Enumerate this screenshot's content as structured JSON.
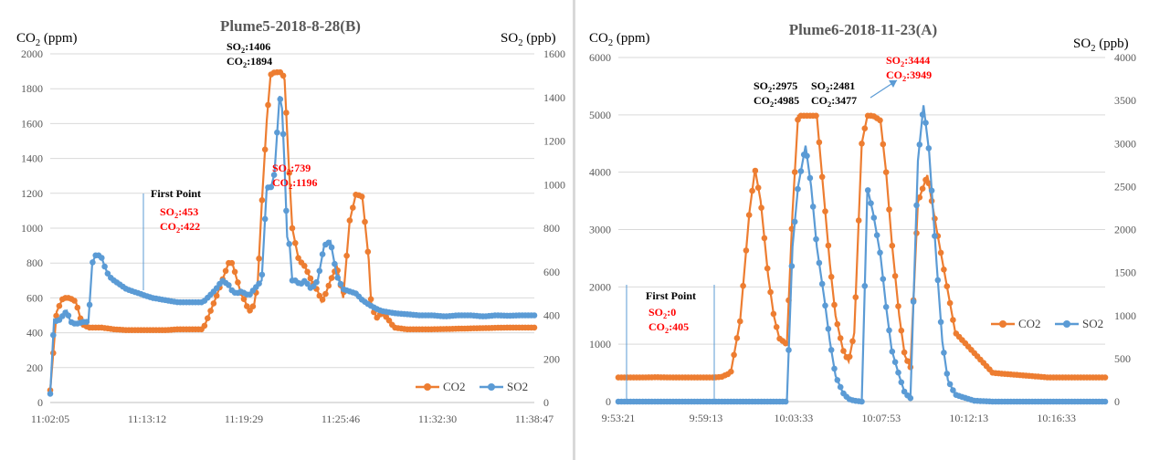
{
  "colors": {
    "co2": "#ED7D31",
    "so2": "#5B9BD5",
    "grid": "#d9d9d9",
    "red": "#FF0000",
    "black": "#000000"
  },
  "chart_data": [
    {
      "type": "line",
      "title": "Plume5-2018-8-28(B)",
      "ylabel": "CO2 (ppm)",
      "y2label": "SO2 (ppb)",
      "x_ticks": [
        "11:02:05",
        "11:13:12",
        "11:19:29",
        "11:25:46",
        "11:32:30",
        "11:38:47"
      ],
      "ylim": [
        0,
        2000
      ],
      "y_ticks": [
        0,
        200,
        400,
        600,
        800,
        1000,
        1200,
        1400,
        1600,
        1800,
        2000
      ],
      "y2lim": [
        0,
        1600
      ],
      "y2_ticks": [
        0,
        200,
        400,
        600,
        800,
        1000,
        1200,
        1400,
        1600
      ],
      "legend": [
        "CO2",
        "SO2"
      ],
      "legend_position": "bottom-right",
      "grid": true,
      "series": [
        {
          "name": "CO2",
          "axis": "left",
          "t": [
            0,
            0.5,
            1,
            1.5,
            2,
            2.5,
            3,
            3.5,
            4,
            5,
            6,
            7,
            8,
            9,
            10,
            11,
            12,
            13,
            14,
            14.3,
            14.6,
            15,
            15.3,
            15.6,
            16,
            16.3,
            16.6,
            17,
            17.3,
            17.6,
            18,
            18.2,
            18.4,
            18.7,
            19,
            19.5,
            20,
            20.5,
            21,
            21.3,
            21.6,
            22,
            22.5,
            23,
            23.5,
            24,
            24.5,
            25,
            25.2,
            25.4,
            25.7,
            26,
            26.5,
            27,
            28,
            30,
            33,
            36,
            38
          ],
          "v": [
            70,
            520,
            600,
            600,
            580,
            450,
            430,
            430,
            430,
            420,
            415,
            415,
            415,
            415,
            420,
            420,
            420,
            600,
            800,
            800,
            720,
            620,
            580,
            520,
            560,
            700,
            1130,
            1620,
            1880,
            1894,
            1894,
            1894,
            1850,
            1400,
            1000,
            820,
            780,
            700,
            640,
            580,
            620,
            700,
            780,
            600,
            1040,
            1196,
            1180,
            820,
            560,
            520,
            480,
            520,
            480,
            430,
            420,
            420,
            425,
            430,
            430
          ]
        },
        {
          "name": "SO2",
          "axis": "right",
          "t": [
            0,
            0.3,
            0.6,
            1,
            1.3,
            1.6,
            2,
            2.3,
            2.6,
            3,
            3.3,
            3.6,
            4,
            4.3,
            4.6,
            5,
            5.5,
            6,
            7,
            8,
            9,
            10,
            11,
            12,
            13,
            13.5,
            14,
            14.3,
            14.6,
            15,
            15.3,
            15.6,
            16,
            16.3,
            16.6,
            17,
            17.3,
            17.6,
            18,
            18.2,
            18.4,
            18.6,
            18.8,
            19,
            19.3,
            19.6,
            20,
            20.5,
            21,
            21.5,
            22,
            22.5,
            23,
            23.5,
            24,
            24.5,
            25,
            25.3,
            25.6,
            26,
            27,
            28,
            29,
            30,
            31,
            32,
            33,
            34,
            35,
            36,
            37,
            38
          ],
          "v": [
            40,
            380,
            370,
            400,
            420,
            370,
            360,
            365,
            370,
            370,
            640,
            680,
            670,
            620,
            580,
            560,
            540,
            520,
            500,
            480,
            470,
            460,
            460,
            460,
            520,
            560,
            540,
            510,
            500,
            510,
            500,
            490,
            520,
            540,
            560,
            990,
            980,
            1050,
            1406,
            1350,
            1080,
            760,
            720,
            560,
            560,
            540,
            560,
            520,
            560,
            720,
            740,
            580,
            520,
            510,
            500,
            470,
            450,
            440,
            430,
            420,
            410,
            405,
            400,
            400,
            395,
            400,
            400,
            395,
            400,
            398,
            400,
            400
          ]
        }
      ],
      "annotations": [
        {
          "lines": [
            "First Point"
          ],
          "color": "black"
        },
        {
          "lines": [
            "SO₂:453",
            "CO₂:422"
          ],
          "color": "red"
        },
        {
          "lines": [
            "SO₂:1406",
            "CO₂:1894"
          ],
          "color": "black"
        },
        {
          "lines": [
            "SO₂:739",
            "CO₂:1196"
          ],
          "color": "red"
        }
      ]
    },
    {
      "type": "line",
      "title": "Plume6-2018-11-23(A)",
      "ylabel": "CO2 (ppm)",
      "y2label": "SO2 (ppb)",
      "x_ticks": [
        "9:53:21",
        "9:59:13",
        "10:03:33",
        "10:07:53",
        "10:12:13",
        "10:16:33"
      ],
      "ylim": [
        0,
        6000
      ],
      "y_ticks": [
        0,
        1000,
        2000,
        3000,
        4000,
        5000,
        6000
      ],
      "y2lim": [
        0,
        4000
      ],
      "y2_ticks": [
        0,
        500,
        1000,
        1500,
        2000,
        2500,
        3000,
        3500,
        4000
      ],
      "legend": [
        "CO2",
        "SO2"
      ],
      "legend_position": "right",
      "grid": true,
      "series": [
        {
          "name": "CO2",
          "axis": "left",
          "t": [
            0,
            1,
            2,
            3,
            4,
            5,
            5.5,
            6,
            6.5,
            7,
            7.3,
            7.6,
            8,
            8.3,
            8.6,
            9,
            9.3,
            9.6,
            10,
            10.3,
            10.6,
            11,
            11.3,
            11.6,
            12,
            12.3,
            12.6,
            13,
            13.3,
            13.6,
            14,
            14.3,
            14.6,
            15,
            15.3,
            15.6,
            16,
            16.5,
            17,
            18,
            20,
            23,
            26
          ],
          "v": [
            420,
            420,
            425,
            420,
            420,
            420,
            430,
            500,
            1400,
            3300,
            4050,
            3500,
            2200,
            1500,
            1100,
            1000,
            3300,
            4985,
            4985,
            4985,
            4985,
            3500,
            2400,
            1500,
            900,
            700,
            1200,
            4500,
            4985,
            4985,
            4900,
            4000,
            2800,
            1500,
            800,
            600,
            3477,
            3949,
            3000,
            1200,
            500,
            420,
            420
          ]
        },
        {
          "name": "SO2",
          "axis": "right",
          "t": [
            0,
            5,
            7,
            8,
            9,
            9.3,
            9.6,
            10,
            10.3,
            10.6,
            11,
            11.3,
            11.6,
            12,
            12.3,
            12.6,
            13,
            13.3,
            13.6,
            14,
            14.3,
            14.6,
            15,
            15.3,
            15.6,
            16,
            16.3,
            16.6,
            17,
            17.3,
            17.6,
            18,
            19,
            20,
            26
          ],
          "v": [
            0,
            0,
            0,
            0,
            0,
            1800,
            2500,
            2975,
            2500,
            1800,
            1200,
            700,
            300,
            100,
            30,
            10,
            0,
            2481,
            2200,
            1700,
            1100,
            600,
            300,
            100,
            40,
            2800,
            3444,
            2900,
            1600,
            700,
            250,
            80,
            10,
            0,
            0
          ]
        }
      ],
      "annotations": [
        {
          "lines": [
            "First Point"
          ],
          "color": "black"
        },
        {
          "lines": [
            "SO₂:0",
            "CO₂:405"
          ],
          "color": "red"
        },
        {
          "lines": [
            "SO₂:2975",
            "CO₂:4985"
          ],
          "color": "black"
        },
        {
          "lines": [
            "SO₂:2481",
            "CO₂:3477"
          ],
          "color": "black"
        },
        {
          "lines": [
            "SO₂:3444",
            "CO₂:3949"
          ],
          "color": "red"
        }
      ]
    }
  ]
}
